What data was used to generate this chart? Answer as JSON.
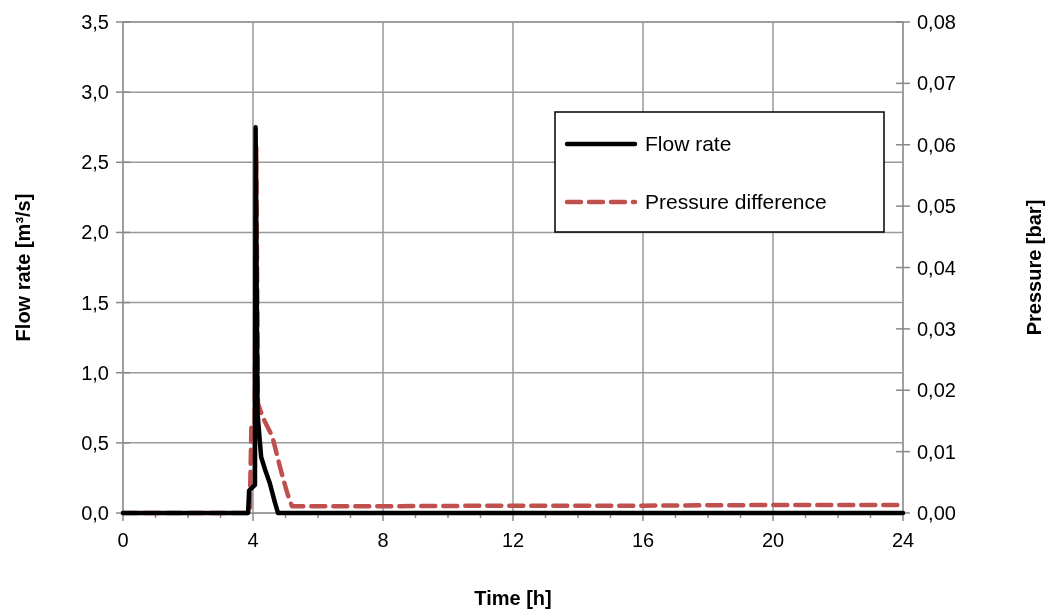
{
  "chart_data": {
    "type": "line",
    "xlabel": "Time [h]",
    "ylabel": "Flow rate [m³/s]",
    "y2label": "Pressure [bar]",
    "xlim": [
      0,
      24
    ],
    "xticks": [
      0,
      {
        "value": 1,
        "label": null
      },
      {
        "value": 2,
        "label": null
      },
      {
        "value": 3,
        "label": null
      },
      4,
      {
        "value": 5,
        "label": null
      },
      {
        "value": 6,
        "label": null
      },
      {
        "value": 7,
        "label": null
      },
      8,
      {
        "value": 9,
        "label": null
      },
      {
        "value": 10,
        "label": null
      },
      {
        "value": 11,
        "label": null
      },
      12,
      {
        "value": 13,
        "label": null
      },
      {
        "value": 14,
        "label": null
      },
      {
        "value": 15,
        "label": null
      },
      16,
      {
        "value": 17,
        "label": null
      },
      {
        "value": 18,
        "label": null
      },
      {
        "value": 19,
        "label": null
      },
      20,
      {
        "value": 21,
        "label": null
      },
      {
        "value": 22,
        "label": null
      },
      {
        "value": 23,
        "label": null
      },
      24
    ],
    "ylim": [
      0,
      3.5
    ],
    "yticks": [
      {
        "value": 0,
        "label": "0,0"
      },
      {
        "value": 0.5,
        "label": "0,5"
      },
      {
        "value": 1,
        "label": "1,0"
      },
      {
        "value": 1.5,
        "label": "1,5"
      },
      {
        "value": 2,
        "label": "2,0"
      },
      {
        "value": 2.5,
        "label": "2,5"
      },
      {
        "value": 3,
        "label": "3,0"
      },
      {
        "value": 3.5,
        "label": "3,5"
      }
    ],
    "y2lim": [
      0,
      0.08
    ],
    "y2ticks": [
      {
        "value": 0,
        "label": "0,00"
      },
      {
        "value": 0.01,
        "label": "0,01"
      },
      {
        "value": 0.02,
        "label": "0,02"
      },
      {
        "value": 0.03,
        "label": "0,03"
      },
      {
        "value": 0.04,
        "label": "0,04"
      },
      {
        "value": 0.05,
        "label": "0,05"
      },
      {
        "value": 0.06,
        "label": "0,06"
      },
      {
        "value": 0.07,
        "label": "0,07"
      },
      {
        "value": 0.08,
        "label": "0,08"
      }
    ],
    "grid": true,
    "legend": "top right",
    "series": [
      {
        "name": "Flow rate",
        "color": "#000000",
        "line_style": "solid",
        "x": [
          0,
          3.85,
          3.88,
          4.06,
          4.08,
          4.14,
          4.25,
          4.37,
          4.52,
          4.68,
          4.77,
          24
        ],
        "values": [
          0,
          0,
          0.16,
          0.2,
          2.75,
          0.71,
          0.4,
          0.31,
          0.21,
          0.07,
          0,
          0
        ]
      },
      {
        "name": "Pressure difference",
        "color": "#c0504d",
        "line_style": "dashed",
        "axis": "y2",
        "x": [
          0,
          3.9,
          3.95,
          4.05,
          4.1,
          4.15,
          4.3,
          4.6,
          4.83,
          5.05,
          5.2,
          8,
          12,
          16,
          20,
          24
        ],
        "values": [
          0,
          0,
          0.0139,
          0.0139,
          0.0596,
          0.0179,
          0.0156,
          0.0124,
          0.0075,
          0.0033,
          0.0011,
          0.0011,
          0.0012,
          0.0012,
          0.0013,
          0.0013
        ]
      }
    ]
  }
}
